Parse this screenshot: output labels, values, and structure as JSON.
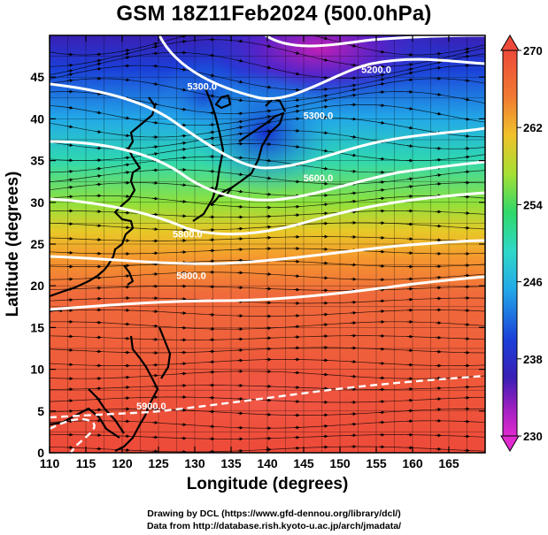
{
  "title": "GSM 18Z11Feb2024 (500.0hPa)",
  "credits": {
    "line1": "Drawing by DCL (https://www.gfd-dennou.org/library/dcl/)",
    "line2": "Data from http://database.rish.kyoto-u.ac.jp/arch/jmadata/"
  },
  "chart_data": {
    "type": "heatmap",
    "xlabel": "Longitude (degrees)",
    "ylabel": "Latitude  (degrees)",
    "xlim": [
      110,
      170
    ],
    "ylim": [
      0,
      50
    ],
    "x_ticks": [
      110,
      115,
      120,
      125,
      130,
      135,
      140,
      145,
      150,
      155,
      160,
      165
    ],
    "y_ticks": [
      0,
      5,
      10,
      15,
      20,
      25,
      30,
      35,
      40,
      45
    ],
    "grid": true,
    "colorbar": {
      "min": 230,
      "max": 270,
      "tick_labels": [
        "270",
        "262",
        "254",
        "246",
        "238",
        "230"
      ],
      "tick_values": [
        270,
        262,
        254,
        246,
        238,
        230
      ],
      "position": "right"
    },
    "contour_labels": [
      {
        "text": "5200.0",
        "lon": 155,
        "lat": 45.5
      },
      {
        "text": "5300.0",
        "lon": 131,
        "lat": 43.5
      },
      {
        "text": "5300.0",
        "lon": 147,
        "lat": 40
      },
      {
        "text": "5600.0",
        "lon": 147,
        "lat": 32.5
      },
      {
        "text": "5800.0",
        "lon": 129,
        "lat": 25.8
      },
      {
        "text": "5800.0",
        "lon": 129.5,
        "lat": 20.8
      },
      {
        "text": "5900.0",
        "lon": 124,
        "lat": 5.2
      }
    ]
  }
}
